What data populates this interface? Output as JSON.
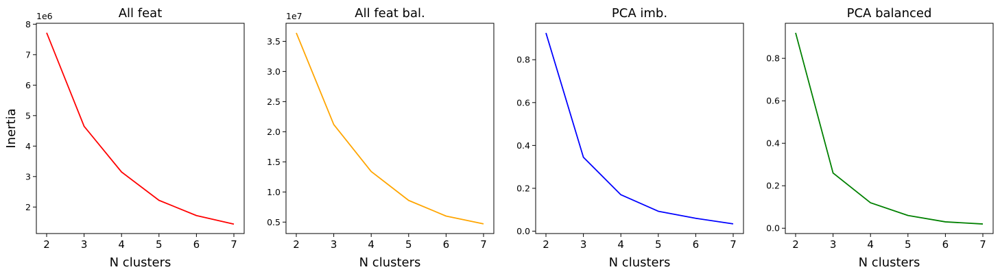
{
  "chart_data": [
    {
      "type": "line",
      "title": "All feat",
      "xlabel": "N clusters",
      "ylabel": "Inertia",
      "offset_text": "1e6",
      "color": "#ff0000",
      "x": [
        2,
        3,
        4,
        5,
        6,
        7
      ],
      "y": [
        7.72,
        4.65,
        3.15,
        2.22,
        1.72,
        1.44
      ],
      "xlim": [
        1.725,
        7.275
      ],
      "ylim": [
        1.13,
        8.03
      ],
      "yticks": [
        2,
        3,
        4,
        5,
        6,
        7,
        8
      ],
      "ytick_labels": [
        "2",
        "3",
        "4",
        "5",
        "6",
        "7",
        "8"
      ],
      "xticks": [
        2,
        3,
        4,
        5,
        6,
        7
      ],
      "xtick_labels": [
        "2",
        "3",
        "4",
        "5",
        "6",
        "7"
      ],
      "grid": false
    },
    {
      "type": "line",
      "title": "All feat bal.",
      "xlabel": "N clusters",
      "ylabel": "",
      "offset_text": "1e7",
      "color": "#ffa500",
      "x": [
        2,
        3,
        4,
        5,
        6,
        7
      ],
      "y": [
        3.64,
        2.12,
        1.34,
        0.86,
        0.6,
        0.47
      ],
      "xlim": [
        1.725,
        7.275
      ],
      "ylim": [
        0.31,
        3.8
      ],
      "yticks": [
        0.5,
        1.0,
        1.5,
        2.0,
        2.5,
        3.0,
        3.5
      ],
      "ytick_labels": [
        "0.5",
        "1.0",
        "1.5",
        "2.0",
        "2.5",
        "3.0",
        "3.5"
      ],
      "xticks": [
        2,
        3,
        4,
        5,
        6,
        7
      ],
      "xtick_labels": [
        "2",
        "3",
        "4",
        "5",
        "6",
        "7"
      ],
      "grid": false
    },
    {
      "type": "line",
      "title": "PCA imb.",
      "xlabel": "N clusters",
      "ylabel": "",
      "offset_text": "",
      "color": "#0000ff",
      "x": [
        2,
        3,
        4,
        5,
        6,
        7
      ],
      "y": [
        0.925,
        0.345,
        0.17,
        0.093,
        0.06,
        0.034
      ],
      "xlim": [
        1.725,
        7.275
      ],
      "ylim": [
        -0.011,
        0.97
      ],
      "yticks": [
        0.0,
        0.2,
        0.4,
        0.6,
        0.8
      ],
      "ytick_labels": [
        "0.0",
        "0.2",
        "0.4",
        "0.6",
        "0.8"
      ],
      "xticks": [
        2,
        3,
        4,
        5,
        6,
        7
      ],
      "xtick_labels": [
        "2",
        "3",
        "4",
        "5",
        "6",
        "7"
      ],
      "grid": false
    },
    {
      "type": "line",
      "title": "PCA balanced",
      "xlabel": "N clusters",
      "ylabel": "",
      "offset_text": "",
      "color": "#008000",
      "x": [
        2,
        3,
        4,
        5,
        6,
        7
      ],
      "y": [
        0.92,
        0.26,
        0.12,
        0.06,
        0.03,
        0.02
      ],
      "xlim": [
        1.725,
        7.275
      ],
      "ylim": [
        -0.025,
        0.965
      ],
      "yticks": [
        0.0,
        0.2,
        0.4,
        0.6,
        0.8
      ],
      "ytick_labels": [
        "0.0",
        "0.2",
        "0.4",
        "0.6",
        "0.8"
      ],
      "xticks": [
        2,
        3,
        4,
        5,
        6,
        7
      ],
      "xtick_labels": [
        "2",
        "3",
        "4",
        "5",
        "6",
        "7"
      ],
      "grid": false
    }
  ]
}
